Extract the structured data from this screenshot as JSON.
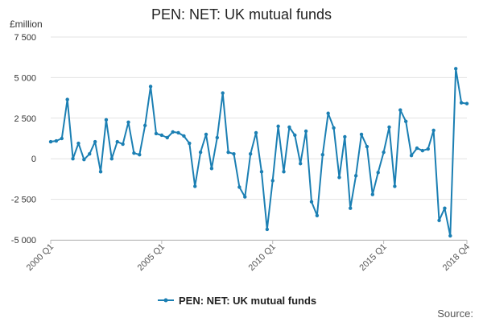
{
  "chart_data": {
    "type": "line",
    "title": "PEN: NET: UK mutual funds",
    "unit_label": "£million",
    "source_label": "Source:",
    "legend_position": "bottom-center",
    "grid": "horizontal",
    "ylim": [
      -5000,
      7500
    ],
    "y_ticks": [
      {
        "value": 7500,
        "label": "7 500"
      },
      {
        "value": 5000,
        "label": "5 000"
      },
      {
        "value": 2500,
        "label": "2 500"
      },
      {
        "value": 0,
        "label": "0"
      },
      {
        "value": -2500,
        "label": "-2 500"
      },
      {
        "value": -5000,
        "label": "-5 000"
      }
    ],
    "x_ticks": [
      {
        "index": 0,
        "label": "2000 Q1"
      },
      {
        "index": 20,
        "label": "2005 Q1"
      },
      {
        "index": 40,
        "label": "2010 Q1"
      },
      {
        "index": 60,
        "label": "2015 Q1"
      },
      {
        "index": 75,
        "label": "2018 Q4"
      }
    ],
    "colors": {
      "series": "#1b7fb3",
      "grid": "#e3e3e3",
      "axis": "#bbbbbb"
    },
    "series": [
      {
        "name": "PEN: NET: UK mutual funds",
        "x": [
          "2000 Q1",
          "2000 Q2",
          "2000 Q3",
          "2000 Q4",
          "2001 Q1",
          "2001 Q2",
          "2001 Q3",
          "2001 Q4",
          "2002 Q1",
          "2002 Q2",
          "2002 Q3",
          "2002 Q4",
          "2003 Q1",
          "2003 Q2",
          "2003 Q3",
          "2003 Q4",
          "2004 Q1",
          "2004 Q2",
          "2004 Q3",
          "2004 Q4",
          "2005 Q1",
          "2005 Q2",
          "2005 Q3",
          "2005 Q4",
          "2006 Q1",
          "2006 Q2",
          "2006 Q3",
          "2006 Q4",
          "2007 Q1",
          "2007 Q2",
          "2007 Q3",
          "2007 Q4",
          "2008 Q1",
          "2008 Q2",
          "2008 Q3",
          "2008 Q4",
          "2009 Q1",
          "2009 Q2",
          "2009 Q3",
          "2009 Q4",
          "2010 Q1",
          "2010 Q2",
          "2010 Q3",
          "2010 Q4",
          "2011 Q1",
          "2011 Q2",
          "2011 Q3",
          "2011 Q4",
          "2012 Q1",
          "2012 Q2",
          "2012 Q3",
          "2012 Q4",
          "2013 Q1",
          "2013 Q2",
          "2013 Q3",
          "2013 Q4",
          "2014 Q1",
          "2014 Q2",
          "2014 Q3",
          "2014 Q4",
          "2015 Q1",
          "2015 Q2",
          "2015 Q3",
          "2015 Q4",
          "2016 Q1",
          "2016 Q2",
          "2016 Q3",
          "2016 Q4",
          "2017 Q1",
          "2017 Q2",
          "2017 Q3",
          "2017 Q4",
          "2018 Q1",
          "2018 Q2",
          "2018 Q3",
          "2018 Q4"
        ],
        "values": [
          1050,
          1100,
          1250,
          3650,
          0,
          950,
          -50,
          300,
          1050,
          -800,
          2400,
          0,
          1050,
          900,
          2250,
          350,
          250,
          2050,
          4450,
          1550,
          1450,
          1300,
          1650,
          1600,
          1400,
          950,
          -1700,
          400,
          1500,
          -600,
          1300,
          4050,
          400,
          300,
          -1750,
          -2350,
          300,
          1600,
          -800,
          -4350,
          -1350,
          2000,
          -800,
          1950,
          1450,
          -300,
          1700,
          -2650,
          -3500,
          250,
          2800,
          1900,
          -1150,
          1350,
          -3050,
          -1050,
          1500,
          750,
          -2200,
          -850,
          400,
          1950,
          -1700,
          3000,
          2300,
          200,
          650,
          500,
          600,
          1750,
          -3800,
          -3050,
          -4750,
          5550,
          3450,
          3400
        ]
      }
    ]
  }
}
